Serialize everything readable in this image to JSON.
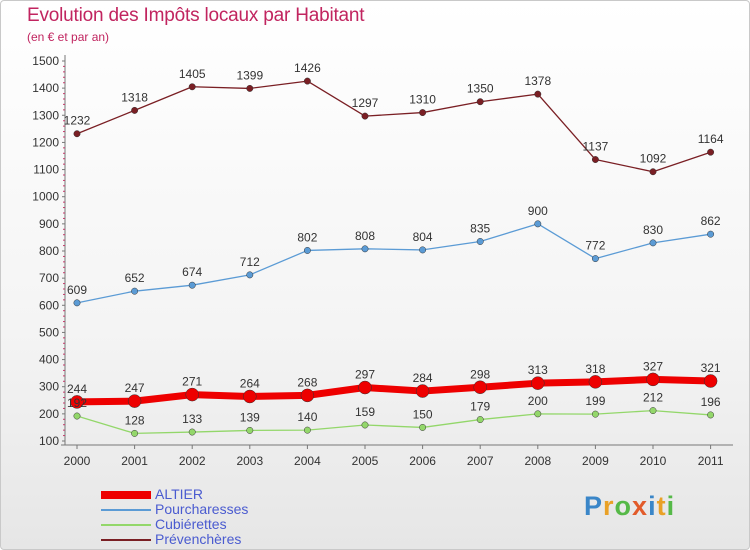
{
  "header": {
    "title": "Evolution des Impôts locaux par Habitant",
    "subtitle": "(en € et par an)"
  },
  "logo": {
    "text": "Proxiti",
    "colors": [
      "#3a86c8",
      "#e9a127",
      "#56b948",
      "#e25b2a",
      "#3a86c8",
      "#e9a127",
      "#56b948"
    ]
  },
  "chart_data": {
    "type": "line",
    "x": [
      "2000",
      "2001",
      "2002",
      "2003",
      "2004",
      "2005",
      "2006",
      "2007",
      "2008",
      "2009",
      "2010",
      "2011"
    ],
    "ylim": [
      100,
      1500
    ],
    "yticks": [
      100,
      200,
      300,
      400,
      500,
      600,
      700,
      800,
      900,
      1000,
      1100,
      1200,
      1300,
      1400,
      1500
    ],
    "grid": false,
    "legend_position": "bottom-left",
    "series": [
      {
        "name": "Prévenchères",
        "color": "#7a1f24",
        "values": [
          1232,
          1318,
          1405,
          1399,
          1426,
          1297,
          1310,
          1350,
          1378,
          1137,
          1092,
          1164
        ]
      },
      {
        "name": "Pourcharesses",
        "color": "#5b9bd5",
        "values": [
          609,
          652,
          674,
          712,
          802,
          808,
          804,
          835,
          900,
          772,
          830,
          862
        ]
      },
      {
        "name": "Cubiérettes",
        "color": "#93d76a",
        "values": [
          192,
          128,
          133,
          139,
          140,
          159,
          150,
          179,
          200,
          199,
          212,
          196
        ]
      },
      {
        "name": "ALTIER",
        "color": "#ee0000",
        "values": [
          244,
          247,
          271,
          264,
          268,
          297,
          284,
          298,
          313,
          318,
          327,
          321
        ]
      }
    ],
    "legend_order": [
      "ALTIER",
      "Pourcharesses",
      "Cubiérettes",
      "Prévenchères"
    ]
  }
}
